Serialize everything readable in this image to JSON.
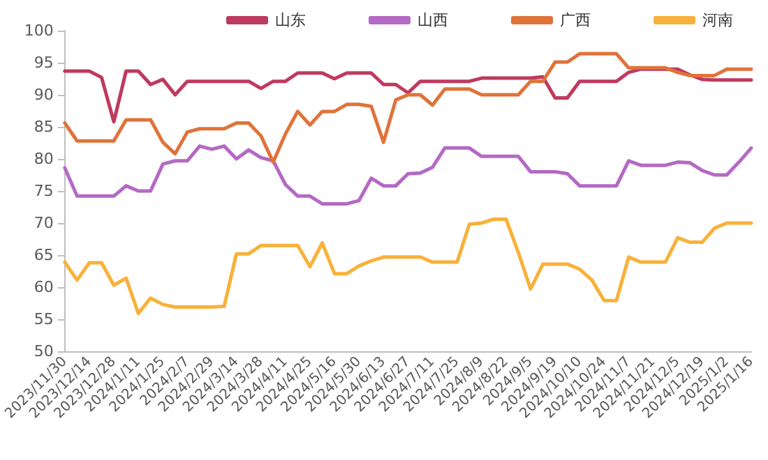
{
  "chart_data": {
    "type": "line",
    "categories": [
      "2023/11/30",
      null,
      "2023/12/14",
      null,
      "2023/12/28",
      null,
      "2024/1/11",
      null,
      "2024/1/25",
      null,
      "2024/2/7",
      null,
      "2024/2/29",
      null,
      "2024/3/14",
      null,
      "2024/3/28",
      null,
      "2024/4/11",
      null,
      "2024/4/25",
      null,
      "2024/5/16",
      null,
      "2024/5/30",
      null,
      "2024/6/13",
      null,
      "2024/6/27",
      null,
      "2024/7/11",
      null,
      "2024/7/25",
      null,
      "2024/8/9",
      null,
      "2024/8/22",
      null,
      "2024/9/5",
      null,
      "2024/9/19",
      null,
      "2024/10/10",
      null,
      "2024/10/24",
      null,
      "2024/11/7",
      null,
      "2024/11/21",
      null,
      "2024/12/5",
      null,
      "2024/12/19",
      null,
      "2025/1/2",
      null,
      "2025/1/16"
    ],
    "series": [
      {
        "name": "山东",
        "color": "#be3a5e",
        "values": [
          93.7,
          93.7,
          93.7,
          92.7,
          85.8,
          93.7,
          93.7,
          91.6,
          92.4,
          90,
          92.1,
          92.1,
          92.1,
          92.1,
          92.1,
          92.1,
          91,
          92.1,
          92.1,
          93.4,
          93.4,
          93.4,
          92.5,
          93.4,
          93.4,
          93.4,
          91.6,
          91.6,
          90.3,
          92.1,
          92.1,
          92.1,
          92.1,
          92.1,
          92.6,
          92.6,
          92.6,
          92.6,
          92.6,
          92.8,
          89.5,
          89.5,
          92.1,
          92.1,
          92.1,
          92.1,
          93.5,
          94,
          94,
          94,
          94,
          93.1,
          92.4,
          92.3,
          92.3,
          92.3,
          92.3
        ]
      },
      {
        "name": "山西",
        "color": "#b469c4",
        "values": [
          78.6,
          74.2,
          74.2,
          74.2,
          74.2,
          75.8,
          75,
          75,
          79.2,
          79.7,
          79.7,
          82,
          81.5,
          82,
          80,
          81.4,
          80.2,
          79.7,
          76,
          74.2,
          74.2,
          73,
          73,
          73,
          73.5,
          77,
          75.8,
          75.8,
          77.7,
          77.8,
          78.7,
          81.7,
          81.7,
          81.7,
          80.4,
          80.4,
          80.4,
          80.4,
          78,
          78,
          78,
          77.7,
          75.8,
          75.8,
          75.8,
          75.8,
          79.7,
          79,
          79,
          79,
          79.5,
          79.4,
          78.2,
          77.5,
          77.5,
          79.5,
          81.7
        ]
      },
      {
        "name": "广西",
        "color": "#e0733a",
        "values": [
          85.6,
          82.8,
          82.8,
          82.8,
          82.8,
          86.1,
          86.1,
          86.1,
          82.6,
          80.8,
          84.2,
          84.7,
          84.7,
          84.7,
          85.6,
          85.6,
          83.6,
          79.5,
          83.9,
          87.4,
          85.3,
          87.4,
          87.4,
          88.5,
          88.5,
          88.2,
          82.6,
          89.2,
          90,
          90,
          88.4,
          90.9,
          90.9,
          90.9,
          90,
          90,
          90,
          90,
          92.1,
          92.1,
          95.1,
          95.1,
          96.4,
          96.4,
          96.4,
          96.4,
          94.2,
          94.2,
          94.2,
          94.2,
          93.5,
          93,
          93,
          93,
          94,
          94,
          94
        ]
      },
      {
        "name": "河南",
        "color": "#f8b13a",
        "values": [
          63.9,
          61.1,
          63.8,
          63.8,
          60.3,
          61.4,
          55.9,
          58.3,
          57.3,
          56.9,
          56.9,
          56.9,
          56.9,
          57,
          65.2,
          65.2,
          66.5,
          66.5,
          66.5,
          66.5,
          63.2,
          66.9,
          62.1,
          62.1,
          63.3,
          64.1,
          64.7,
          64.7,
          64.7,
          64.7,
          63.9,
          63.9,
          63.9,
          69.8,
          70,
          70.6,
          70.6,
          65.4,
          59.7,
          63.6,
          63.6,
          63.6,
          62.8,
          61.1,
          57.9,
          57.9,
          64.7,
          63.9,
          63.9,
          63.9,
          67.7,
          67,
          67,
          69.2,
          70,
          70,
          70
        ]
      }
    ],
    "ylim": [
      50,
      100
    ],
    "yticks": [
      50,
      55,
      60,
      65,
      70,
      75,
      80,
      85,
      90,
      95,
      100
    ],
    "grid": false,
    "legend": "top right",
    "marker": "none",
    "line_style": "solid"
  }
}
